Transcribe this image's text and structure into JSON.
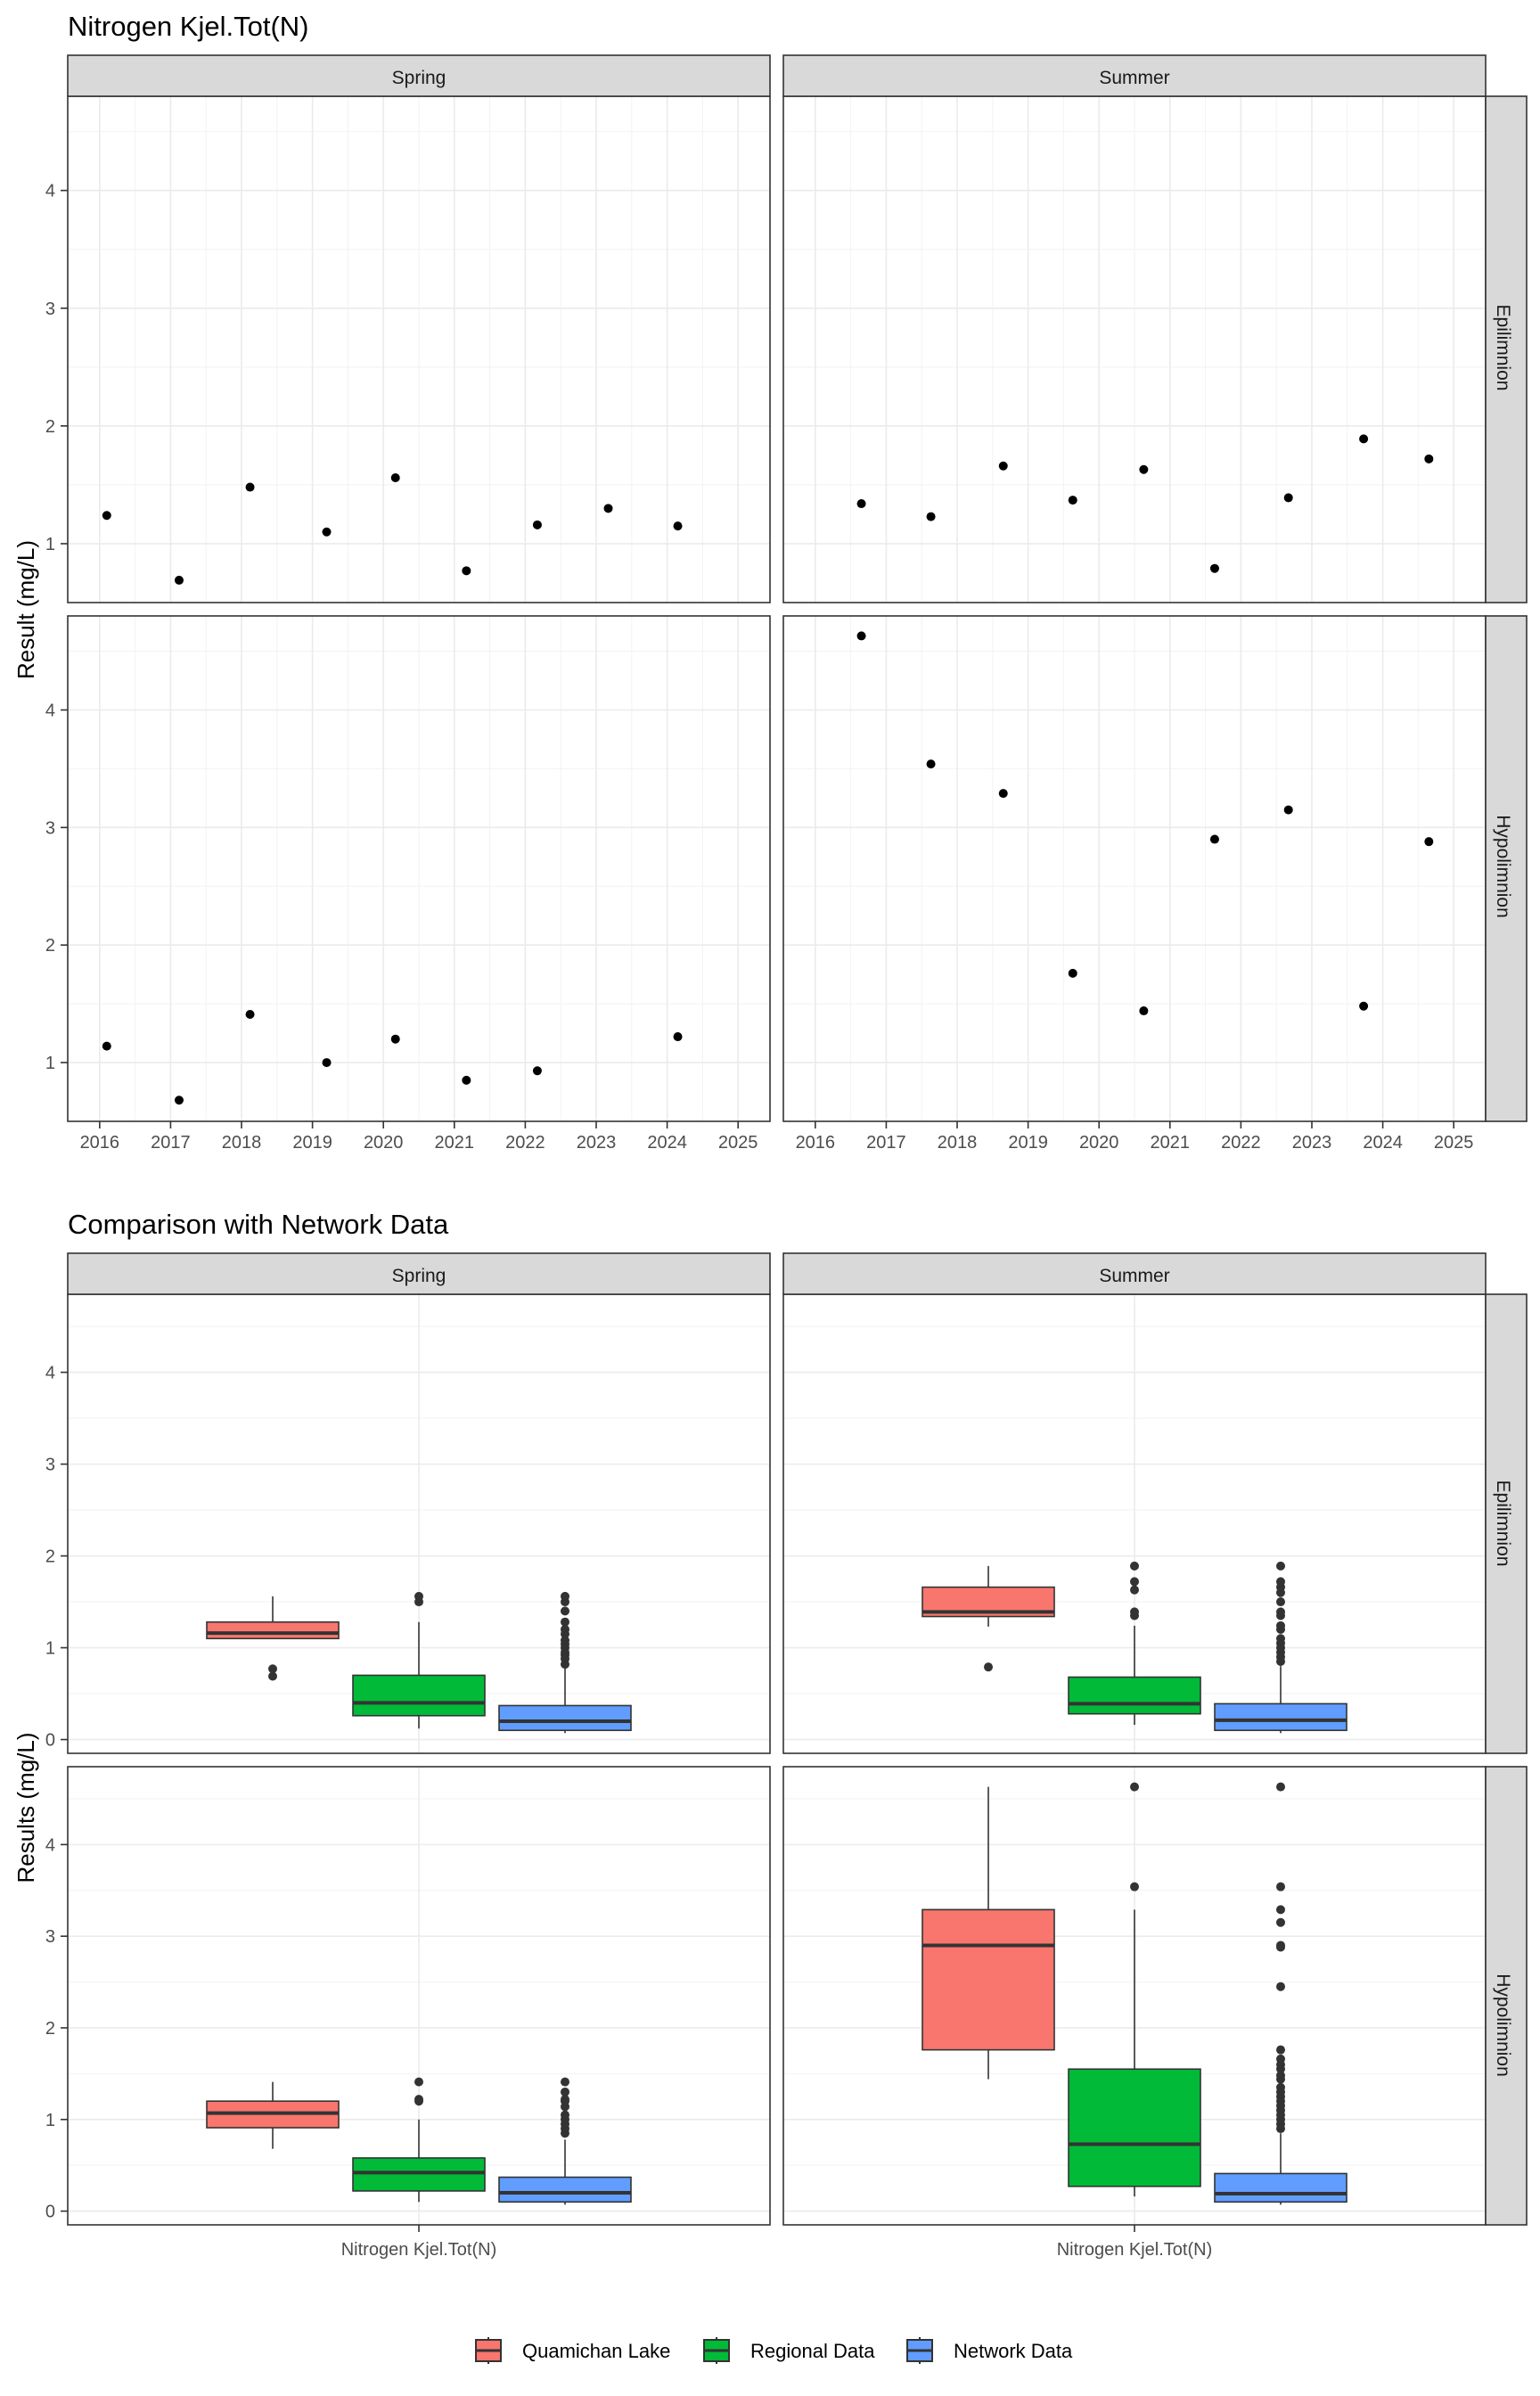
{
  "chart_data": [
    {
      "type": "scatter",
      "title": "Nitrogen Kjel.Tot(N)",
      "ylabel": "Result (mg/L)",
      "xlabel": "",
      "columns": [
        "Spring",
        "Summer"
      ],
      "rows": [
        "Epilimnion",
        "Hypolimnion"
      ],
      "x_ticks": [
        "2016",
        "2017",
        "2018",
        "2019",
        "2020",
        "2021",
        "2022",
        "2023",
        "2024",
        "2025"
      ],
      "y_ticks": [
        "1",
        "2",
        "3",
        "4"
      ],
      "xlim": [
        2015.55,
        2025.45
      ],
      "ylim": [
        0.5,
        4.8
      ],
      "grid": true,
      "panels": [
        {
          "column": "Spring",
          "row": "Epilimnion",
          "points": [
            [
              2016.1,
              1.24
            ],
            [
              2017.12,
              0.69
            ],
            [
              2018.12,
              1.48
            ],
            [
              2019.2,
              1.1
            ],
            [
              2020.17,
              1.56
            ],
            [
              2021.17,
              0.77
            ],
            [
              2022.17,
              1.16
            ],
            [
              2023.17,
              1.3
            ],
            [
              2024.15,
              1.15
            ]
          ]
        },
        {
          "column": "Summer",
          "row": "Epilimnion",
          "points": [
            [
              2016.65,
              1.34
            ],
            [
              2017.63,
              1.23
            ],
            [
              2018.65,
              1.66
            ],
            [
              2019.63,
              1.37
            ],
            [
              2020.63,
              1.63
            ],
            [
              2021.63,
              0.79
            ],
            [
              2022.67,
              1.39
            ],
            [
              2023.73,
              1.89
            ],
            [
              2024.65,
              1.72
            ]
          ]
        },
        {
          "column": "Spring",
          "row": "Hypolimnion",
          "points": [
            [
              2016.1,
              1.14
            ],
            [
              2017.12,
              0.68
            ],
            [
              2018.12,
              1.41
            ],
            [
              2019.2,
              1.0
            ],
            [
              2020.17,
              1.2
            ],
            [
              2021.17,
              0.85
            ],
            [
              2022.17,
              0.93
            ],
            [
              2024.15,
              1.22
            ]
          ]
        },
        {
          "column": "Summer",
          "row": "Hypolimnion",
          "points": [
            [
              2016.65,
              4.63
            ],
            [
              2017.63,
              3.54
            ],
            [
              2018.65,
              3.29
            ],
            [
              2019.63,
              1.76
            ],
            [
              2020.63,
              1.44
            ],
            [
              2021.63,
              2.9
            ],
            [
              2022.67,
              3.15
            ],
            [
              2023.73,
              1.48
            ],
            [
              2024.65,
              2.88
            ]
          ]
        }
      ]
    },
    {
      "type": "box",
      "title": "Comparison with Network Data",
      "ylabel": "Results (mg/L)",
      "xlabel": "",
      "category": "Nitrogen Kjel.Tot(N)",
      "columns": [
        "Spring",
        "Summer"
      ],
      "rows": [
        "Epilimnion",
        "Hypolimnion"
      ],
      "y_ticks": [
        "0",
        "1",
        "2",
        "3",
        "4"
      ],
      "ylim": [
        -0.15,
        4.85
      ],
      "grid": true,
      "legend": {
        "placement": "bottom",
        "items": [
          {
            "name": "Quamichan Lake",
            "color": "#F8766D"
          },
          {
            "name": "Regional Data",
            "color": "#00BA38"
          },
          {
            "name": "Network Data",
            "color": "#619CFF"
          }
        ]
      },
      "panels": [
        {
          "column": "Spring",
          "row": "Epilimnion",
          "boxes": [
            {
              "series": "Quamichan Lake",
              "whisker_low": 1.1,
              "q1": 1.1,
              "median": 1.16,
              "q3": 1.28,
              "whisker_high": 1.56,
              "outliers": [
                0.77,
                0.69
              ]
            },
            {
              "series": "Regional Data",
              "whisker_low": 0.12,
              "q1": 0.26,
              "median": 0.4,
              "q3": 0.7,
              "whisker_high": 1.28,
              "outliers": [
                1.56,
                1.5
              ]
            },
            {
              "series": "Network Data",
              "whisker_low": 0.07,
              "q1": 0.1,
              "median": 0.2,
              "q3": 0.37,
              "whisker_high": 0.78,
              "outliers": [
                0.82,
                0.88,
                0.92,
                0.95,
                1.0,
                1.04,
                1.08,
                1.15,
                1.2,
                1.28,
                1.4,
                1.5,
                1.56
              ]
            }
          ]
        },
        {
          "column": "Summer",
          "row": "Epilimnion",
          "boxes": [
            {
              "series": "Quamichan Lake",
              "whisker_low": 1.23,
              "q1": 1.34,
              "median": 1.39,
              "q3": 1.66,
              "whisker_high": 1.89,
              "outliers": [
                0.79
              ]
            },
            {
              "series": "Regional Data",
              "whisker_low": 0.16,
              "q1": 0.28,
              "median": 0.39,
              "q3": 0.68,
              "whisker_high": 1.24,
              "outliers": [
                1.35,
                1.39,
                1.63,
                1.72,
                1.89
              ]
            },
            {
              "series": "Network Data",
              "whisker_low": 0.07,
              "q1": 0.1,
              "median": 0.21,
              "q3": 0.39,
              "whisker_high": 0.8,
              "outliers": [
                0.85,
                0.9,
                0.95,
                1.0,
                1.05,
                1.1,
                1.2,
                1.24,
                1.35,
                1.39,
                1.5,
                1.6,
                1.66,
                1.72,
                1.89
              ]
            }
          ]
        },
        {
          "column": "Spring",
          "row": "Hypolimnion",
          "boxes": [
            {
              "series": "Quamichan Lake",
              "whisker_low": 0.68,
              "q1": 0.91,
              "median": 1.07,
              "q3": 1.2,
              "whisker_high": 1.41,
              "outliers": []
            },
            {
              "series": "Regional Data",
              "whisker_low": 0.1,
              "q1": 0.22,
              "median": 0.42,
              "q3": 0.58,
              "whisker_high": 1.0,
              "outliers": [
                1.2,
                1.22,
                1.41
              ]
            },
            {
              "series": "Network Data",
              "whisker_low": 0.07,
              "q1": 0.1,
              "median": 0.2,
              "q3": 0.37,
              "whisker_high": 0.78,
              "outliers": [
                0.85,
                0.9,
                0.95,
                1.0,
                1.05,
                1.14,
                1.2,
                1.22,
                1.3,
                1.41
              ]
            }
          ]
        },
        {
          "column": "Summer",
          "row": "Hypolimnion",
          "boxes": [
            {
              "series": "Quamichan Lake",
              "whisker_low": 1.44,
              "q1": 1.76,
              "median": 2.9,
              "q3": 3.29,
              "whisker_high": 4.63,
              "outliers": []
            },
            {
              "series": "Regional Data",
              "whisker_low": 0.16,
              "q1": 0.27,
              "median": 0.73,
              "q3": 1.55,
              "whisker_high": 3.29,
              "outliers": [
                3.54,
                4.63
              ]
            },
            {
              "series": "Network Data",
              "whisker_low": 0.07,
              "q1": 0.1,
              "median": 0.19,
              "q3": 0.41,
              "whisker_high": 0.85,
              "outliers": [
                0.9,
                0.95,
                1.0,
                1.05,
                1.1,
                1.15,
                1.2,
                1.25,
                1.3,
                1.35,
                1.44,
                1.48,
                1.55,
                1.6,
                1.66,
                1.76,
                2.45,
                2.88,
                2.9,
                3.15,
                3.29,
                3.54,
                4.63
              ]
            }
          ]
        }
      ]
    }
  ]
}
